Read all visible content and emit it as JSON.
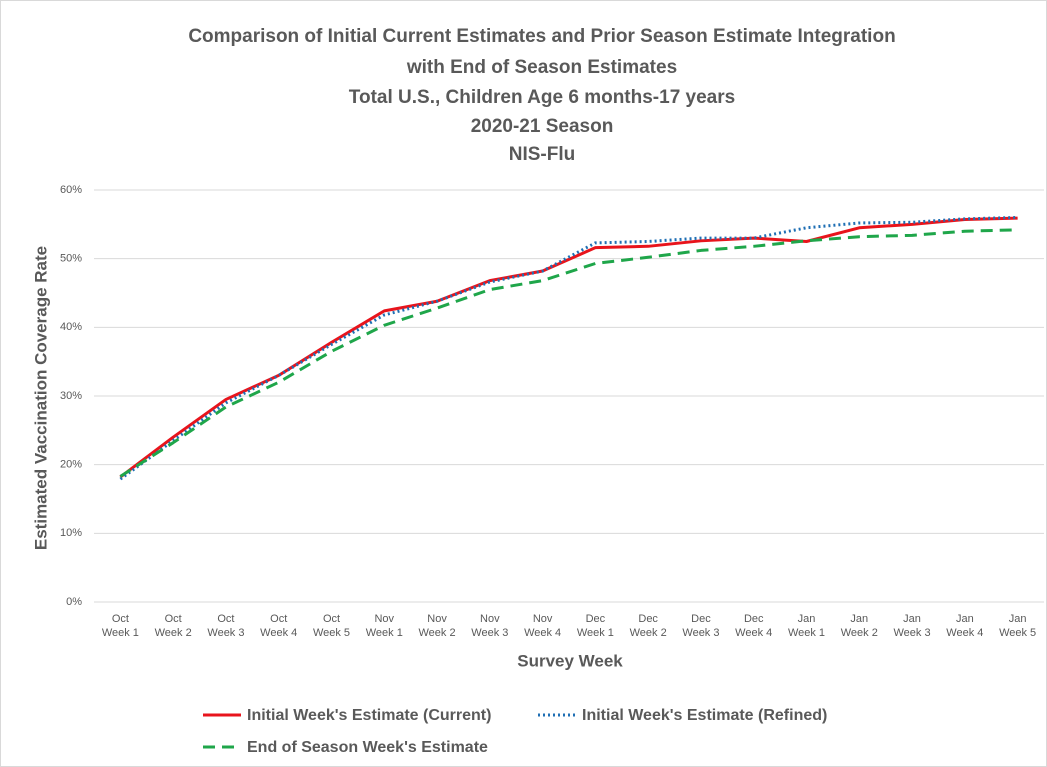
{
  "chart_data": {
    "type": "line",
    "title": [
      "Comparison of Initial Current Estimates and Prior Season Estimate Integration",
      "with End of Season Estimates",
      "Total U.S., Children Age 6 months-17 years",
      "2020-21 Season",
      "NIS-Flu"
    ],
    "x_label": "Survey Week",
    "y_label": "Estimated Vaccination Coverage Rate",
    "categories": [
      "Oct Week 1",
      "Oct Week 2",
      "Oct Week 3",
      "Oct Week 4",
      "Oct Week 5",
      "Nov Week 1",
      "Nov Week 2",
      "Nov Week 3",
      "Nov Week 4",
      "Dec Week 1",
      "Dec Week 2",
      "Dec Week 3",
      "Dec Week 4",
      "Jan Week 1",
      "Jan Week 2",
      "Jan Week 3",
      "Jan Week 4",
      "Jan Week 5"
    ],
    "series": [
      {
        "name": "Initial Week's Estimate (Current)",
        "color": "#e8141c",
        "line_style": "solid",
        "values": [
          18.2,
          24.0,
          29.5,
          33.0,
          37.8,
          42.4,
          43.8,
          46.8,
          48.2,
          51.6,
          51.8,
          52.6,
          53.0,
          52.5,
          54.5,
          55.0,
          55.7,
          55.9
        ]
      },
      {
        "name": "Initial Week's Estimate (Refined)",
        "color": "#1f6fb4",
        "line_style": "dotted",
        "values": [
          17.9,
          23.5,
          29.0,
          33.0,
          37.5,
          41.8,
          43.8,
          46.6,
          48.2,
          52.3,
          52.5,
          53.0,
          53.0,
          54.5,
          55.2,
          55.3,
          55.8,
          56.0
        ]
      },
      {
        "name": "End of Season Week's Estimate",
        "color": "#1fa64a",
        "line_style": "dashed",
        "values": [
          18.3,
          23.2,
          28.4,
          32.0,
          36.5,
          40.3,
          42.8,
          45.5,
          46.8,
          49.3,
          50.2,
          51.2,
          51.8,
          52.6,
          53.2,
          53.4,
          54.0,
          54.2
        ]
      }
    ],
    "ylim": [
      0,
      60
    ],
    "yticks": [
      {
        "value": 0,
        "label": "0%"
      },
      {
        "value": 10,
        "label": "10%"
      },
      {
        "value": 20,
        "label": "20%"
      },
      {
        "value": 30,
        "label": "30%"
      },
      {
        "value": 40,
        "label": "40%"
      },
      {
        "value": 50,
        "label": "50%"
      },
      {
        "value": 60,
        "label": "60%"
      }
    ],
    "grid": true
  }
}
